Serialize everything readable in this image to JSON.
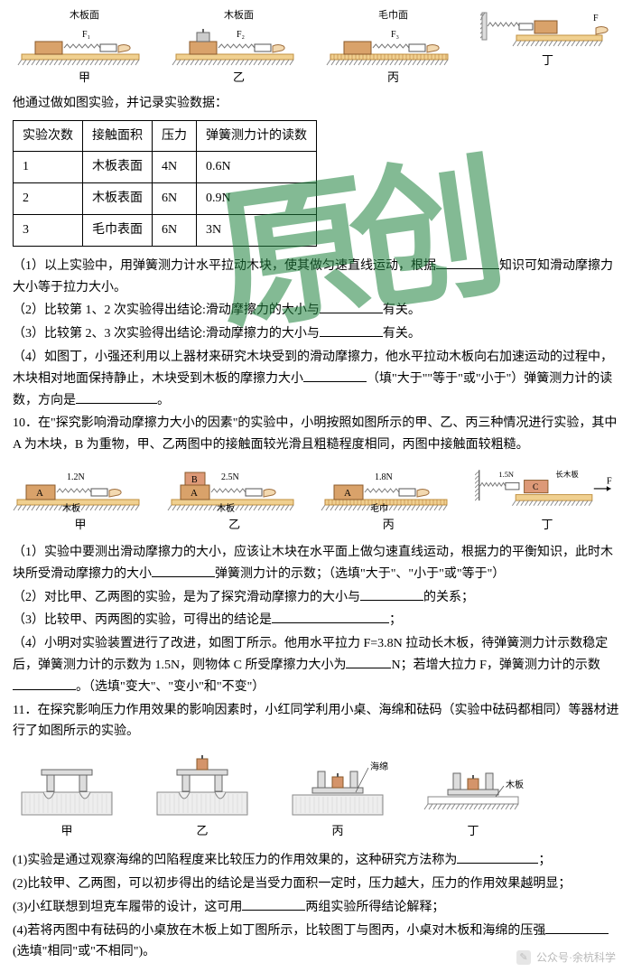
{
  "topFigs": {
    "captions": [
      "木板面",
      "木板面",
      "毛巾面",
      ""
    ],
    "labels": [
      "甲",
      "乙",
      "丙",
      "丁"
    ],
    "forces": [
      "F₁",
      "F₂",
      "F₃",
      "F"
    ]
  },
  "intro": "他通过做如图实验，并记录实验数据：",
  "table": {
    "headers": [
      "实验次数",
      "接触面积",
      "压力",
      "弹簧测力计的读数"
    ],
    "rows": [
      [
        "1",
        "木板表面",
        "4N",
        "0.6N"
      ],
      [
        "2",
        "木板表面",
        "6N",
        "0.9N"
      ],
      [
        "3",
        "毛巾表面",
        "6N",
        "3N"
      ]
    ]
  },
  "q9": {
    "p1a": "（1）以上实验中，用弹簧测力计水平拉动木块，使其做匀速直线运动，根据",
    "p1b": "知识可知滑动摩擦力大小等于拉力大小。",
    "p2a": "（2）比较第 1、2 次实验得出结论:滑动摩擦力的大小与",
    "p2b": "有关。",
    "p3a": "（3）比较第 2、3 次实验得出结论:滑动摩擦力的大小与",
    "p3b": "有关。",
    "p4a": "（4）如图丁，小强还利用以上器材来研究木块受到的滑动摩擦力，他水平拉动木板向右加速运动的过程中，木块相对地面保持静止，木块受到木板的摩擦力大小",
    "p4b": "（填\"大于\"\"等于\"或\"小于\"）弹簧测力计的读数，方向是",
    "p4c": "。"
  },
  "q10": {
    "stem": "10．在\"探究影响滑动摩擦力大小的因素\"的实验中，小明按照如图所示的甲、乙、丙三种情况进行实验，其中 A 为木块，B 为重物，甲、乙两图中的接触面较光滑且粗糙程度相同，丙图中接触面较粗糙。",
    "forces": [
      "1.2N",
      "2.5N",
      "1.8N",
      "1.5N"
    ],
    "surfaces": [
      "木板",
      "木板",
      "毛巾",
      "长木板"
    ],
    "labels": [
      "甲",
      "乙",
      "丙",
      "丁"
    ],
    "p1a": "（1）实验中要测出滑动摩擦力的大小，应该让木块在水平面上做匀速直线运动，根据力的平衡知识，此时木块所受滑动摩擦力的大小",
    "p1b": "弹簧测力计的示数；（选填\"大于\"、\"小于\"或\"等于\"）",
    "p2a": "（2）对比甲、乙两图的实验，是为了探究滑动摩擦力的大小与",
    "p2b": "的关系；",
    "p3a": "（3）比较甲、丙两图的实验，可得出的结论是",
    "p3b": "；",
    "p4a": "（4）小明对实验装置进行了改进，如图丁所示。他用水平拉力 F=3.8N 拉动长木板，待弹簧测力计示数稳定后，弹簧测力计的示数为 1.5N，则物体 C 所受摩擦力大小为",
    "p4b": "N；若增大拉力 F，弹簧测力计的示数",
    "p4c": "。（选填\"变大\"、\"变小\"和\"不变\"）"
  },
  "q11": {
    "stem": "11．在探究影响压力作用效果的影响因素时，小红同学利用小桌、海绵和砝码（实验中砝码都相同）等器材进行了如图所示的实验。",
    "labels": [
      "甲",
      "乙",
      "丙",
      "丁"
    ],
    "ann": {
      "sponge": "海绵",
      "board": "木板"
    },
    "p1a": "(1)实验是通过观察海绵的凹陷程度来比较压力的作用效果的，这种研究方法称为",
    "p1b": "；",
    "p2": "(2)比较甲、乙两图，可以初步得出的结论是当受力面积一定时，压力越大，压力的作用效果越明显；",
    "p3a": "(3)小红联想到坦克车履带的设计，这可用",
    "p3b": "两组实验所得结论解释；",
    "p4a": "(4)若将丙图中有砝码的小桌放在木板上如丁图所示，比较图丁与图丙，小桌对木板和海绵的压强",
    "p4b": "(选填\"相同\"或\"不相同\")。"
  },
  "footer": "公众号·余杭科学",
  "colors": {
    "block": "#d9a26a",
    "blockStroke": "#8a5a2b",
    "surface": "#f0d090",
    "surfaceStroke": "#c09040",
    "hatch": "#888",
    "spring": "#777",
    "labelA": "#000",
    "red": "#c33",
    "sponge": "#eee",
    "spongeStroke": "#888",
    "table": "#ddd",
    "tableStroke": "#666",
    "weight": "#d4946a"
  }
}
